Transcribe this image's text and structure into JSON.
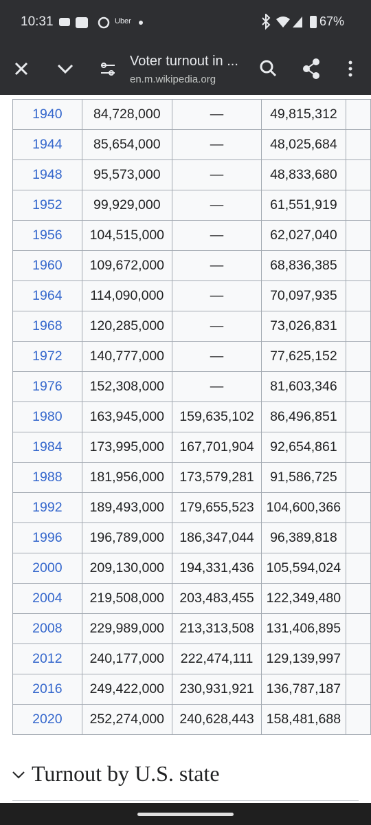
{
  "status_bar": {
    "time": "10:31",
    "app_label": "Uber",
    "battery": "67%"
  },
  "toolbar": {
    "title": "Voter turnout in ...",
    "url": "en.m.wikipedia.org"
  },
  "table": {
    "rows": [
      [
        "1940",
        "84,728,000",
        "—",
        "49,815,312"
      ],
      [
        "1944",
        "85,654,000",
        "—",
        "48,025,684"
      ],
      [
        "1948",
        "95,573,000",
        "—",
        "48,833,680"
      ],
      [
        "1952",
        "99,929,000",
        "—",
        "61,551,919"
      ],
      [
        "1956",
        "104,515,000",
        "—",
        "62,027,040"
      ],
      [
        "1960",
        "109,672,000",
        "—",
        "68,836,385"
      ],
      [
        "1964",
        "114,090,000",
        "—",
        "70,097,935"
      ],
      [
        "1968",
        "120,285,000",
        "—",
        "73,026,831"
      ],
      [
        "1972",
        "140,777,000",
        "—",
        "77,625,152"
      ],
      [
        "1976",
        "152,308,000",
        "—",
        "81,603,346"
      ],
      [
        "1980",
        "163,945,000",
        "159,635,102",
        "86,496,851"
      ],
      [
        "1984",
        "173,995,000",
        "167,701,904",
        "92,654,861"
      ],
      [
        "1988",
        "181,956,000",
        "173,579,281",
        "91,586,725"
      ],
      [
        "1992",
        "189,493,000",
        "179,655,523",
        "104,600,366"
      ],
      [
        "1996",
        "196,789,000",
        "186,347,044",
        "96,389,818"
      ],
      [
        "2000",
        "209,130,000",
        "194,331,436",
        "105,594,024"
      ],
      [
        "2004",
        "219,508,000",
        "203,483,455",
        "122,349,480"
      ],
      [
        "2008",
        "229,989,000",
        "213,313,508",
        "131,406,895"
      ],
      [
        "2012",
        "240,177,000",
        "222,474,111",
        "129,139,997"
      ],
      [
        "2016",
        "249,422,000",
        "230,931,921",
        "136,787,187"
      ],
      [
        "2020",
        "252,274,000",
        "240,628,443",
        "158,481,688"
      ]
    ]
  },
  "section": {
    "heading": "Turnout by U.S. state"
  }
}
